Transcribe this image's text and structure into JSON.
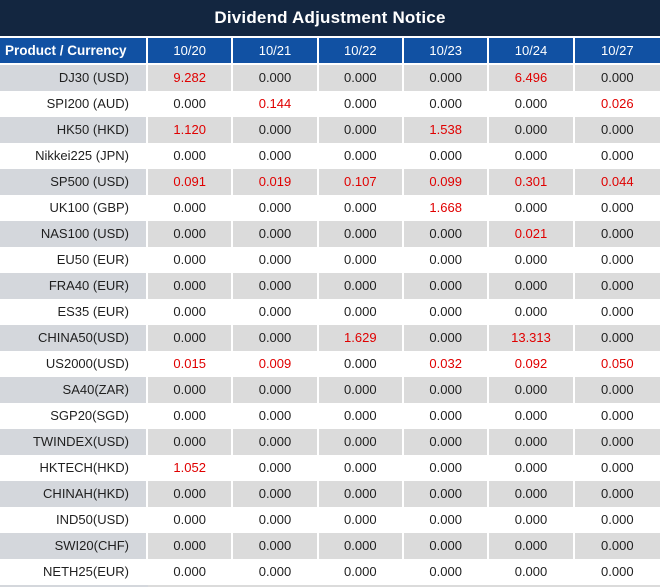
{
  "title": "Dividend Adjustment Notice",
  "colors": {
    "title-bg": "#132640",
    "header-bg": "#1151a3",
    "row-gray": "#dbdbdb",
    "product-gray": "#d4d7dc",
    "value-red": "#e00000",
    "text-black": "#1f1f1f"
  },
  "table": {
    "product_header": "Product / Currency",
    "date_headers": [
      "10/20",
      "10/21",
      "10/22",
      "10/23",
      "10/24",
      "10/27"
    ],
    "rows": [
      {
        "product": "DJ30 (USD)",
        "values": [
          "9.282",
          "0.000",
          "0.000",
          "0.000",
          "6.496",
          "0.000"
        ],
        "red": [
          true,
          false,
          false,
          false,
          true,
          false
        ]
      },
      {
        "product": "SPI200 (AUD)",
        "values": [
          "0.000",
          "0.144",
          "0.000",
          "0.000",
          "0.000",
          "0.026"
        ],
        "red": [
          false,
          true,
          false,
          false,
          false,
          true
        ]
      },
      {
        "product": "HK50 (HKD)",
        "values": [
          "1.120",
          "0.000",
          "0.000",
          "1.538",
          "0.000",
          "0.000"
        ],
        "red": [
          true,
          false,
          false,
          true,
          false,
          false
        ]
      },
      {
        "product": "Nikkei225 (JPN)",
        "values": [
          "0.000",
          "0.000",
          "0.000",
          "0.000",
          "0.000",
          "0.000"
        ],
        "red": [
          false,
          false,
          false,
          false,
          false,
          false
        ]
      },
      {
        "product": "SP500 (USD)",
        "values": [
          "0.091",
          "0.019",
          "0.107",
          "0.099",
          "0.301",
          "0.044"
        ],
        "red": [
          true,
          true,
          true,
          true,
          true,
          true
        ]
      },
      {
        "product": "UK100 (GBP)",
        "values": [
          "0.000",
          "0.000",
          "0.000",
          "1.668",
          "0.000",
          "0.000"
        ],
        "red": [
          false,
          false,
          false,
          true,
          false,
          false
        ]
      },
      {
        "product": "NAS100 (USD)",
        "values": [
          "0.000",
          "0.000",
          "0.000",
          "0.000",
          "0.021",
          "0.000"
        ],
        "red": [
          false,
          false,
          false,
          false,
          true,
          false
        ]
      },
      {
        "product": "EU50 (EUR)",
        "values": [
          "0.000",
          "0.000",
          "0.000",
          "0.000",
          "0.000",
          "0.000"
        ],
        "red": [
          false,
          false,
          false,
          false,
          false,
          false
        ]
      },
      {
        "product": "FRA40 (EUR)",
        "values": [
          "0.000",
          "0.000",
          "0.000",
          "0.000",
          "0.000",
          "0.000"
        ],
        "red": [
          false,
          false,
          false,
          false,
          false,
          false
        ]
      },
      {
        "product": "ES35 (EUR)",
        "values": [
          "0.000",
          "0.000",
          "0.000",
          "0.000",
          "0.000",
          "0.000"
        ],
        "red": [
          false,
          false,
          false,
          false,
          false,
          false
        ]
      },
      {
        "product": "CHINA50(USD)",
        "values": [
          "0.000",
          "0.000",
          "1.629",
          "0.000",
          "13.313",
          "0.000"
        ],
        "red": [
          false,
          false,
          true,
          false,
          true,
          false
        ]
      },
      {
        "product": "US2000(USD)",
        "values": [
          "0.015",
          "0.009",
          "0.000",
          "0.032",
          "0.092",
          "0.050"
        ],
        "red": [
          true,
          true,
          false,
          true,
          true,
          true
        ]
      },
      {
        "product": "SA40(ZAR)",
        "values": [
          "0.000",
          "0.000",
          "0.000",
          "0.000",
          "0.000",
          "0.000"
        ],
        "red": [
          false,
          false,
          false,
          false,
          false,
          false
        ]
      },
      {
        "product": "SGP20(SGD)",
        "values": [
          "0.000",
          "0.000",
          "0.000",
          "0.000",
          "0.000",
          "0.000"
        ],
        "red": [
          false,
          false,
          false,
          false,
          false,
          false
        ]
      },
      {
        "product": "TWINDEX(USD)",
        "values": [
          "0.000",
          "0.000",
          "0.000",
          "0.000",
          "0.000",
          "0.000"
        ],
        "red": [
          false,
          false,
          false,
          false,
          false,
          false
        ]
      },
      {
        "product": "HKTECH(HKD)",
        "values": [
          "1.052",
          "0.000",
          "0.000",
          "0.000",
          "0.000",
          "0.000"
        ],
        "red": [
          true,
          false,
          false,
          false,
          false,
          false
        ]
      },
      {
        "product": "CHINAH(HKD)",
        "values": [
          "0.000",
          "0.000",
          "0.000",
          "0.000",
          "0.000",
          "0.000"
        ],
        "red": [
          false,
          false,
          false,
          false,
          false,
          false
        ]
      },
      {
        "product": "IND50(USD)",
        "values": [
          "0.000",
          "0.000",
          "0.000",
          "0.000",
          "0.000",
          "0.000"
        ],
        "red": [
          false,
          false,
          false,
          false,
          false,
          false
        ]
      },
      {
        "product": "SWI20(CHF)",
        "values": [
          "0.000",
          "0.000",
          "0.000",
          "0.000",
          "0.000",
          "0.000"
        ],
        "red": [
          false,
          false,
          false,
          false,
          false,
          false
        ]
      },
      {
        "product": "NETH25(EUR)",
        "values": [
          "0.000",
          "0.000",
          "0.000",
          "0.000",
          "0.000",
          "0.000"
        ],
        "red": [
          false,
          false,
          false,
          false,
          false,
          false
        ]
      }
    ]
  }
}
